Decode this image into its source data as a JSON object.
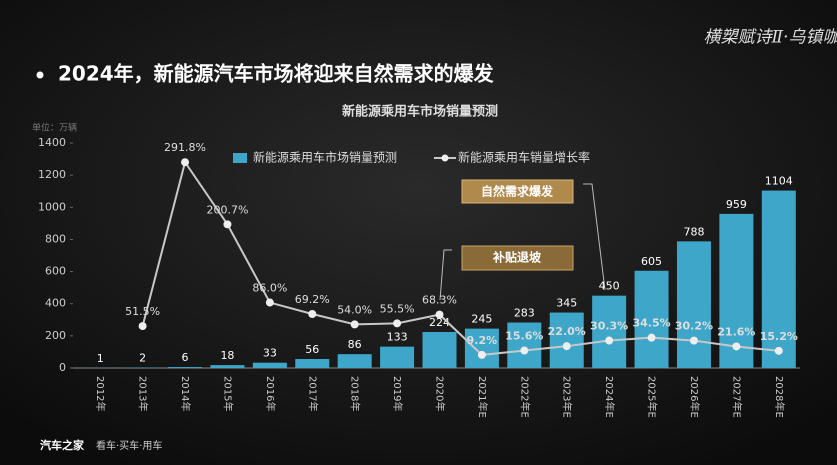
{
  "header": {
    "title": "2024年，新能源汽车市场将迎来自然需求的爆发",
    "logo": "横槊赋诗Ⅱ·乌镇咖茶"
  },
  "footer": {
    "brand": "汽车之家",
    "slogan": "看车·买车·用车"
  },
  "chart_data": {
    "type": "bar",
    "title": "新能源乘用车市场销量预测",
    "unit_label": "单位：万辆",
    "categories": [
      "2012年",
      "2013年",
      "2014年",
      "2015年",
      "2016年",
      "2017年",
      "2018年",
      "2019年",
      "2020年",
      "2021年E",
      "2022年E",
      "2023年E",
      "2024年E",
      "2025年E",
      "2026年E",
      "2027年E",
      "2028年E"
    ],
    "series": [
      {
        "name": "新能源乘用车市场销量预测",
        "type": "bar",
        "color": "#3ea6c8",
        "values": [
          1,
          2,
          6,
          18,
          33,
          56,
          86,
          133,
          224,
          245,
          283,
          345,
          450,
          605,
          788,
          959,
          1104
        ]
      },
      {
        "name": "新能源乘用车销量增长率",
        "type": "line",
        "axis": "y2",
        "color": "#c8c8c8",
        "values": [
          null,
          51.5,
          291.8,
          200.7,
          86.0,
          69.2,
          54.0,
          55.5,
          68.3,
          9.2,
          15.6,
          22.0,
          30.3,
          34.5,
          30.2,
          21.6,
          15.2
        ],
        "value_labels": [
          null,
          "51.5%",
          "291.8%",
          "200.7%",
          "86.0%",
          "69.2%",
          "54.0%",
          "55.5%",
          "68.3%",
          "9.2%",
          "15.6%",
          "22.0%",
          "30.3%",
          "34.5%",
          "30.2%",
          "21.6%",
          "15.2%"
        ]
      }
    ],
    "ylim": [
      0,
      1400
    ],
    "yticks": [
      0,
      200,
      400,
      600,
      800,
      1000,
      1200,
      1400
    ],
    "y2lim": [
      -10,
      320
    ],
    "annotations": [
      "自然需求爆发",
      "补贴退坡"
    ],
    "legend": "top"
  }
}
